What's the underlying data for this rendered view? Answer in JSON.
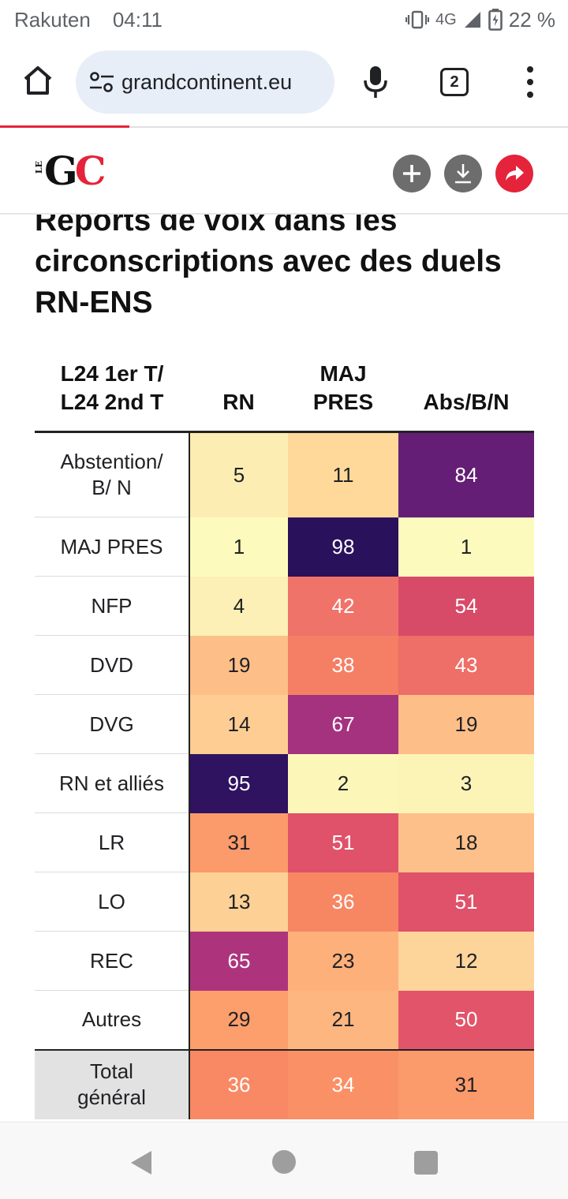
{
  "status_bar": {
    "carrier": "Rakuten",
    "time": "04:11",
    "network": "4G",
    "battery": "22 %"
  },
  "browser": {
    "url": "ɡrandcontinent.eu",
    "tab_count": "2"
  },
  "site": {
    "logo_prefix": "LE",
    "logo_g": "G",
    "logo_c": "C"
  },
  "article": {
    "title": "Reports de voix dans les circonscriptions avec des duels RN-ENS"
  },
  "table": {
    "headers": [
      "L24 1er T/\nL24 2nd T",
      "RN",
      "MAJ\nPRES",
      "Abs/B/N"
    ],
    "rows": [
      {
        "label": "Abstention/\nB/ N",
        "values": [
          "5",
          "11",
          "84"
        ],
        "colors": [
          "#fcedb2",
          "#fed99a",
          "#641e75"
        ]
      },
      {
        "label": "MAJ PRES",
        "values": [
          "1",
          "98",
          "1"
        ],
        "colors": [
          "#fcfbbd",
          "#2a115c",
          "#fcfbbd"
        ]
      },
      {
        "label": "NFP",
        "values": [
          "4",
          "42",
          "54"
        ],
        "colors": [
          "#fcf0b6",
          "#f0736a",
          "#d74b68"
        ]
      },
      {
        "label": "DVD",
        "values": [
          "19",
          "38",
          "43"
        ],
        "colors": [
          "#febe88",
          "#f47f64",
          "#ee6e68"
        ]
      },
      {
        "label": "DVG",
        "values": [
          "14",
          "67",
          "19"
        ],
        "colors": [
          "#fdcd94",
          "#a5327f",
          "#febe88"
        ]
      },
      {
        "label": "RN et alliés",
        "values": [
          "95",
          "2",
          "3"
        ],
        "colors": [
          "#2f1260",
          "#fcf7b9",
          "#fcf4b7"
        ]
      },
      {
        "label": "LR",
        "values": [
          "31",
          "51",
          "18"
        ],
        "colors": [
          "#fb9a6a",
          "#e0516a",
          "#fdc08a"
        ]
      },
      {
        "label": "LO",
        "values": [
          "13",
          "36",
          "51"
        ],
        "colors": [
          "#fdd096",
          "#f78663",
          "#e0516a"
        ]
      },
      {
        "label": "REC",
        "values": [
          "65",
          "23",
          "12"
        ],
        "colors": [
          "#ad347c",
          "#feb07a",
          "#fdd49a"
        ]
      },
      {
        "label": "Autres",
        "values": [
          "29",
          "21",
          "50"
        ],
        "colors": [
          "#fc9f6c",
          "#feb680",
          "#e2546a"
        ]
      },
      {
        "label": "Total\ngénéral",
        "values": [
          "36",
          "34",
          "31"
        ],
        "colors": [
          "#f88964",
          "#fa9065",
          "#fb9a6a"
        ]
      }
    ]
  },
  "colors": {
    "accent": "#e5233a",
    "action_grey": "#6d6d6d",
    "url_bar": "#e8eef8"
  },
  "icons": [
    "home-icon",
    "site-settings-icon",
    "mic-icon",
    "tabs-icon",
    "more-vert-icon",
    "plus-icon",
    "download-icon",
    "share-icon",
    "back-icon",
    "home-nav-icon",
    "recents-icon"
  ]
}
